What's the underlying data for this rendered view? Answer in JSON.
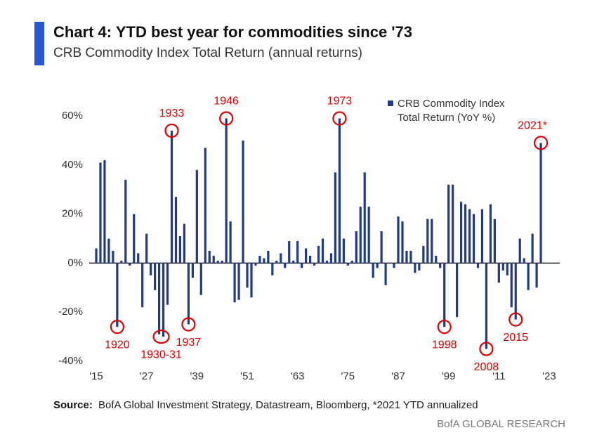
{
  "chart_data": {
    "type": "bar",
    "title": "Chart 4: YTD best year for commodities since '73",
    "subtitle": "CRB Commodity Index Total Return (annual returns)",
    "x": [
      1915,
      1916,
      1917,
      1918,
      1919,
      1920,
      1921,
      1922,
      1923,
      1924,
      1925,
      1926,
      1927,
      1928,
      1929,
      1930,
      1931,
      1932,
      1933,
      1934,
      1935,
      1936,
      1937,
      1938,
      1939,
      1940,
      1941,
      1942,
      1943,
      1944,
      1945,
      1946,
      1947,
      1948,
      1949,
      1950,
      1951,
      1952,
      1953,
      1954,
      1955,
      1956,
      1957,
      1958,
      1959,
      1960,
      1961,
      1962,
      1963,
      1964,
      1965,
      1966,
      1967,
      1968,
      1969,
      1970,
      1971,
      1972,
      1973,
      1974,
      1975,
      1976,
      1977,
      1978,
      1979,
      1980,
      1981,
      1982,
      1983,
      1984,
      1985,
      1986,
      1987,
      1988,
      1989,
      1990,
      1991,
      1992,
      1993,
      1994,
      1995,
      1996,
      1997,
      1998,
      1999,
      2000,
      2001,
      2002,
      2003,
      2004,
      2005,
      2006,
      2007,
      2008,
      2009,
      2010,
      2011,
      2012,
      2013,
      2014,
      2015,
      2016,
      2017,
      2018,
      2019,
      2020,
      2021
    ],
    "series": [
      {
        "name": "CRB Commodity Index Total Return (YoY %)",
        "color": "#1f3a8a",
        "values": [
          6,
          41,
          42,
          10,
          5,
          -26,
          1,
          34,
          -1,
          20,
          4,
          -18,
          12,
          -5,
          -11,
          -29,
          -30,
          -17,
          54,
          27,
          11,
          16,
          -25,
          -6,
          38,
          -13,
          47,
          5,
          3,
          1,
          1,
          59,
          17,
          -16,
          -15,
          50,
          -10,
          -14,
          -1,
          3,
          2,
          5,
          -5,
          1,
          4,
          -2,
          9,
          1,
          9,
          -2,
          6,
          3,
          -1,
          7,
          10,
          1,
          4,
          37,
          59,
          10,
          -1,
          1,
          13,
          23,
          37,
          23,
          -6,
          -2,
          13,
          -9,
          0,
          -2,
          19,
          17,
          5,
          5,
          -4,
          -3,
          7,
          18,
          18,
          3,
          -2,
          -26,
          32,
          32,
          -22,
          25,
          24,
          22,
          20,
          -2,
          22,
          -35,
          24,
          18,
          -8,
          -3,
          -5,
          -18,
          -23,
          10,
          2,
          -11,
          12,
          -10,
          49
        ]
      }
    ],
    "xlim": [
      1915,
      2023
    ],
    "xticks": [
      {
        "value": 1915,
        "label": "'15"
      },
      {
        "value": 1927,
        "label": "'27"
      },
      {
        "value": 1939,
        "label": "'39"
      },
      {
        "value": 1951,
        "label": "'51"
      },
      {
        "value": 1963,
        "label": "'63"
      },
      {
        "value": 1975,
        "label": "'75"
      },
      {
        "value": 1987,
        "label": "'87"
      },
      {
        "value": 1999,
        "label": "'99"
      },
      {
        "value": 2011,
        "label": "'11"
      },
      {
        "value": 2023,
        "label": "'23"
      }
    ],
    "ylim": [
      -40,
      60
    ],
    "yticks": [
      {
        "value": -40,
        "label": "-40%"
      },
      {
        "value": -20,
        "label": "-20%"
      },
      {
        "value": 0,
        "label": "0%"
      },
      {
        "value": 20,
        "label": "20%"
      },
      {
        "value": 40,
        "label": "40%"
      },
      {
        "value": 60,
        "label": "60%"
      }
    ],
    "annotations": [
      {
        "text": "1920",
        "x": 1920
      },
      {
        "text": "1930-31",
        "x": 1930.5
      },
      {
        "text": "1933",
        "x": 1933
      },
      {
        "text": "1937",
        "x": 1937
      },
      {
        "text": "1946",
        "x": 1946
      },
      {
        "text": "1973",
        "x": 1973
      },
      {
        "text": "1998",
        "x": 1998
      },
      {
        "text": "2008",
        "x": 2008
      },
      {
        "text": "2015",
        "x": 2015
      },
      {
        "text": "2021*",
        "x": 2021
      }
    ],
    "source_label": "Source:",
    "source": "BofA Global Investment Strategy, Datastream, Bloomberg, *2021  YTD annualized",
    "footer": "BofA GLOBAL RESEARCH"
  }
}
